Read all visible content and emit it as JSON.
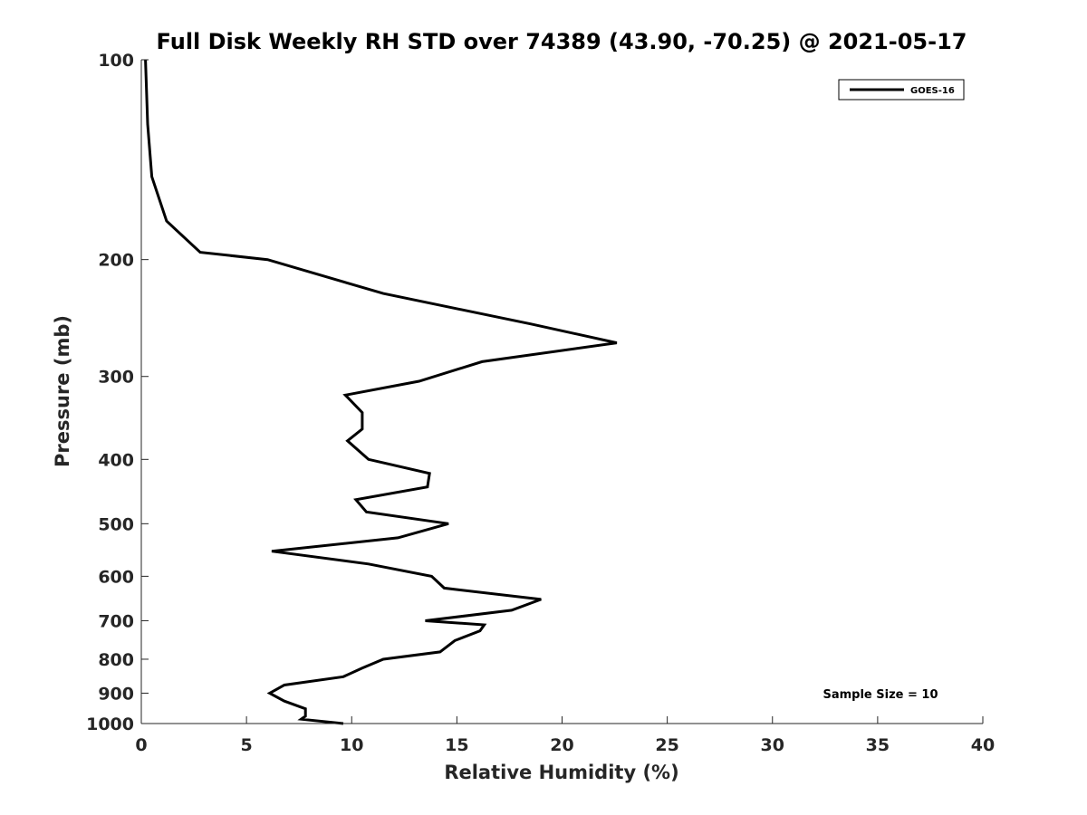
{
  "chart_data": {
    "type": "line",
    "title": "Full Disk Weekly RH STD over 74389 (43.90, -70.25) @ 2021-05-17",
    "xlabel": "Relative Humidity (%)",
    "ylabel": "Pressure (mb)",
    "xlim": [
      0,
      40
    ],
    "ylim": [
      1000,
      100
    ],
    "y_scale": "log",
    "y_reversed": true,
    "x_ticks": [
      0,
      5,
      10,
      15,
      20,
      25,
      30,
      35,
      40
    ],
    "y_ticks": [
      100,
      200,
      300,
      400,
      500,
      600,
      700,
      800,
      900,
      1000
    ],
    "grid": false,
    "legend_position": "top-right",
    "series": [
      {
        "name": "GOES-16",
        "color": "#000000",
        "points": [
          [
            0.2,
            100
          ],
          [
            0.3,
            125
          ],
          [
            0.5,
            150
          ],
          [
            1.2,
            175
          ],
          [
            2.8,
            195
          ],
          [
            6.0,
            200
          ],
          [
            11.5,
            225
          ],
          [
            18.5,
            250
          ],
          [
            22.6,
            267
          ],
          [
            16.2,
            285
          ],
          [
            13.2,
            305
          ],
          [
            9.7,
            320
          ],
          [
            10.5,
            340
          ],
          [
            10.5,
            360
          ],
          [
            9.8,
            375
          ],
          [
            10.8,
            400
          ],
          [
            13.7,
            420
          ],
          [
            13.6,
            440
          ],
          [
            10.2,
            460
          ],
          [
            10.7,
            480
          ],
          [
            14.6,
            500
          ],
          [
            12.2,
            525
          ],
          [
            6.2,
            550
          ],
          [
            10.8,
            575
          ],
          [
            13.8,
            600
          ],
          [
            14.4,
            625
          ],
          [
            19.0,
            650
          ],
          [
            17.6,
            675
          ],
          [
            13.5,
            700
          ],
          [
            16.3,
            710
          ],
          [
            16.1,
            725
          ],
          [
            14.9,
            750
          ],
          [
            14.2,
            780
          ],
          [
            11.5,
            800
          ],
          [
            10.5,
            825
          ],
          [
            9.6,
            850
          ],
          [
            6.8,
            875
          ],
          [
            6.1,
            900
          ],
          [
            6.8,
            925
          ],
          [
            7.8,
            950
          ],
          [
            7.8,
            975
          ],
          [
            7.6,
            985
          ],
          [
            9.6,
            1000
          ]
        ]
      }
    ],
    "annotations": [
      {
        "text": "Sample Size = 10",
        "position": "bottom-right"
      }
    ]
  }
}
